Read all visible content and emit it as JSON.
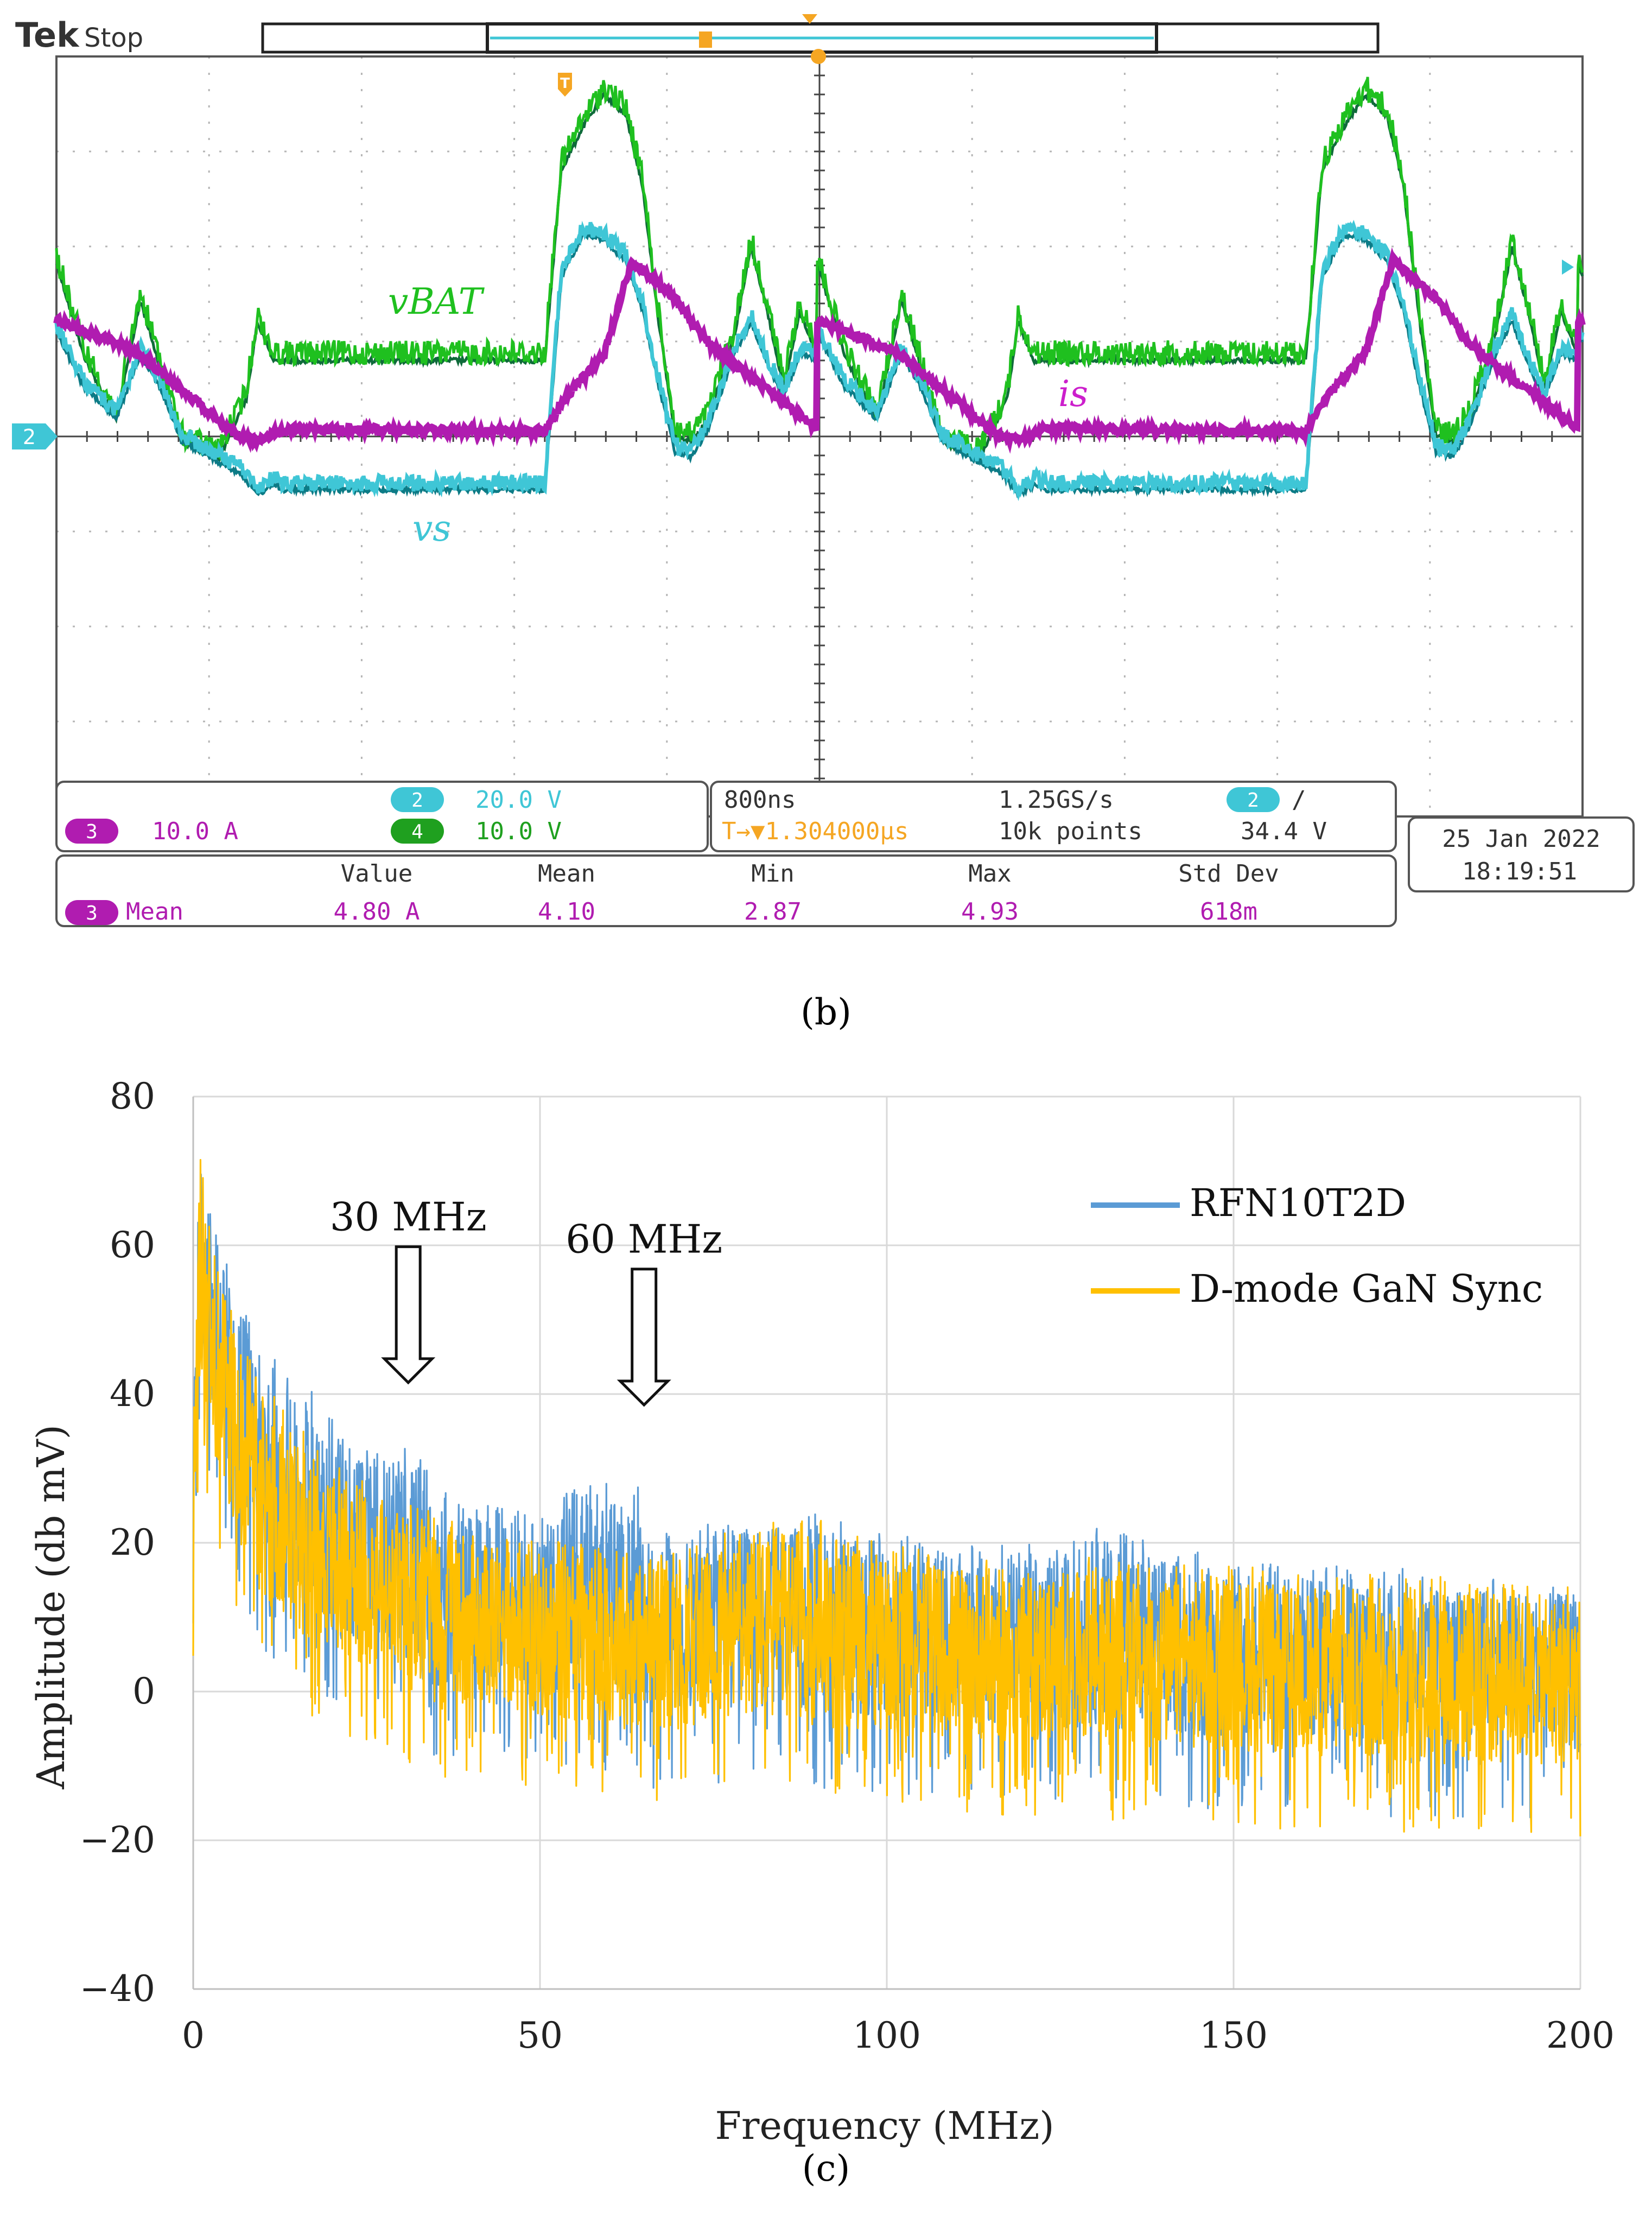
{
  "scope": {
    "brand": "Tek",
    "run_state": "Stop",
    "trigger_marker": "T",
    "ch2_ground_marker": "2",
    "labels": {
      "v_bat": "vBAT",
      "i_s": "is",
      "v_s": "vs"
    },
    "colors": {
      "ch2": "#3fc6d6",
      "ch3": "#b01cb0",
      "ch4": "#1fc01f",
      "trigger": "#f5a623",
      "grid": "#bfbfbf"
    },
    "channels": {
      "ch2": {
        "num": "2",
        "scale": "20.0 V"
      },
      "ch3": {
        "num": "3",
        "scale": "10.0 A"
      },
      "ch4": {
        "num": "4",
        "scale": "10.0 V"
      }
    },
    "timebase": "800ns",
    "sample_rate": "1.25GS/s",
    "trigger_position": "T→▼1.304000μs",
    "record_length": "10k points",
    "trigger_channel": "2",
    "trigger_slope": "∕",
    "trigger_level": "34.4 V",
    "date": "25 Jan  2022",
    "time": "18:19:51",
    "measurement": {
      "headers": [
        "Value",
        "Mean",
        "Min",
        "Max",
        "Std Dev"
      ],
      "channel": "3",
      "name": "Mean",
      "values": [
        "4.80 A",
        "4.10",
        "2.87",
        "4.93",
        "618m"
      ]
    }
  },
  "captions": {
    "b": "(b)",
    "c": "(c)"
  },
  "chart_data": {
    "type": "line",
    "xlabel": "Frequency (MHz)",
    "ylabel": "Amplitude (db mV)",
    "xlim": [
      0,
      200
    ],
    "ylim": [
      -40,
      80
    ],
    "xticks": [
      "0",
      "50",
      "100",
      "150",
      "200"
    ],
    "yticks": [
      "−40",
      "−20",
      "0",
      "20",
      "40",
      "60",
      "80"
    ],
    "grid": true,
    "legend": "top-right",
    "annotations": [
      {
        "text": "30 MHz",
        "x": 31,
        "y": 43
      },
      {
        "text": "60 MHz",
        "x": 65,
        "y": 40
      }
    ],
    "series": [
      {
        "name": "RFN10T2D",
        "color": "#5b9bd5",
        "envelope_x": [
          0,
          1,
          2,
          4,
          6,
          8,
          10,
          15,
          20,
          25,
          28,
          30,
          32,
          35,
          40,
          45,
          50,
          55,
          58,
          60,
          62,
          64,
          66,
          70,
          80,
          90,
          100,
          110,
          120,
          125,
          130,
          140,
          150,
          160,
          170,
          180,
          190,
          200
        ],
        "peak": [
          45,
          72,
          68,
          60,
          55,
          50,
          47,
          42,
          38,
          33,
          33,
          37,
          33,
          28,
          25,
          25,
          23,
          28,
          30,
          31,
          30,
          29,
          22,
          22,
          24,
          24,
          22,
          20,
          20,
          20,
          23,
          20,
          18,
          17,
          17,
          16,
          15,
          15
        ],
        "floor": [
          0,
          40,
          38,
          32,
          25,
          18,
          14,
          8,
          5,
          3,
          2,
          2,
          0,
          -2,
          0,
          -2,
          -4,
          -2,
          -2,
          -4,
          -4,
          -4,
          -5,
          -5,
          -4,
          -5,
          -6,
          -6,
          -7,
          -7,
          -7,
          -8,
          -8,
          -8,
          -9,
          -9,
          -9,
          -10
        ]
      },
      {
        "name": "D-mode GaN Sync",
        "color": "#ffc000",
        "envelope_x": [
          0,
          1,
          2,
          4,
          6,
          8,
          10,
          15,
          20,
          25,
          28,
          30,
          32,
          35,
          40,
          45,
          50,
          55,
          58,
          60,
          62,
          64,
          66,
          70,
          80,
          90,
          100,
          110,
          120,
          125,
          130,
          140,
          150,
          160,
          170,
          180,
          190,
          200
        ],
        "peak": [
          40,
          73,
          66,
          57,
          50,
          45,
          42,
          36,
          31,
          28,
          26,
          26,
          25,
          24,
          22,
          21,
          21,
          20,
          20,
          20,
          19,
          19,
          19,
          19,
          23,
          24,
          20,
          19,
          18,
          18,
          18,
          17,
          17,
          16,
          16,
          16,
          15,
          15
        ],
        "floor": [
          0,
          35,
          32,
          26,
          20,
          14,
          10,
          6,
          3,
          1,
          0,
          -1,
          -3,
          -5,
          -3,
          -4,
          -6,
          -6,
          -6,
          -6,
          -7,
          -7,
          -7,
          -7,
          -6,
          -7,
          -8,
          -8,
          -9,
          -9,
          -9,
          -10,
          -10,
          -11,
          -11,
          -12,
          -12,
          -12
        ]
      }
    ]
  }
}
